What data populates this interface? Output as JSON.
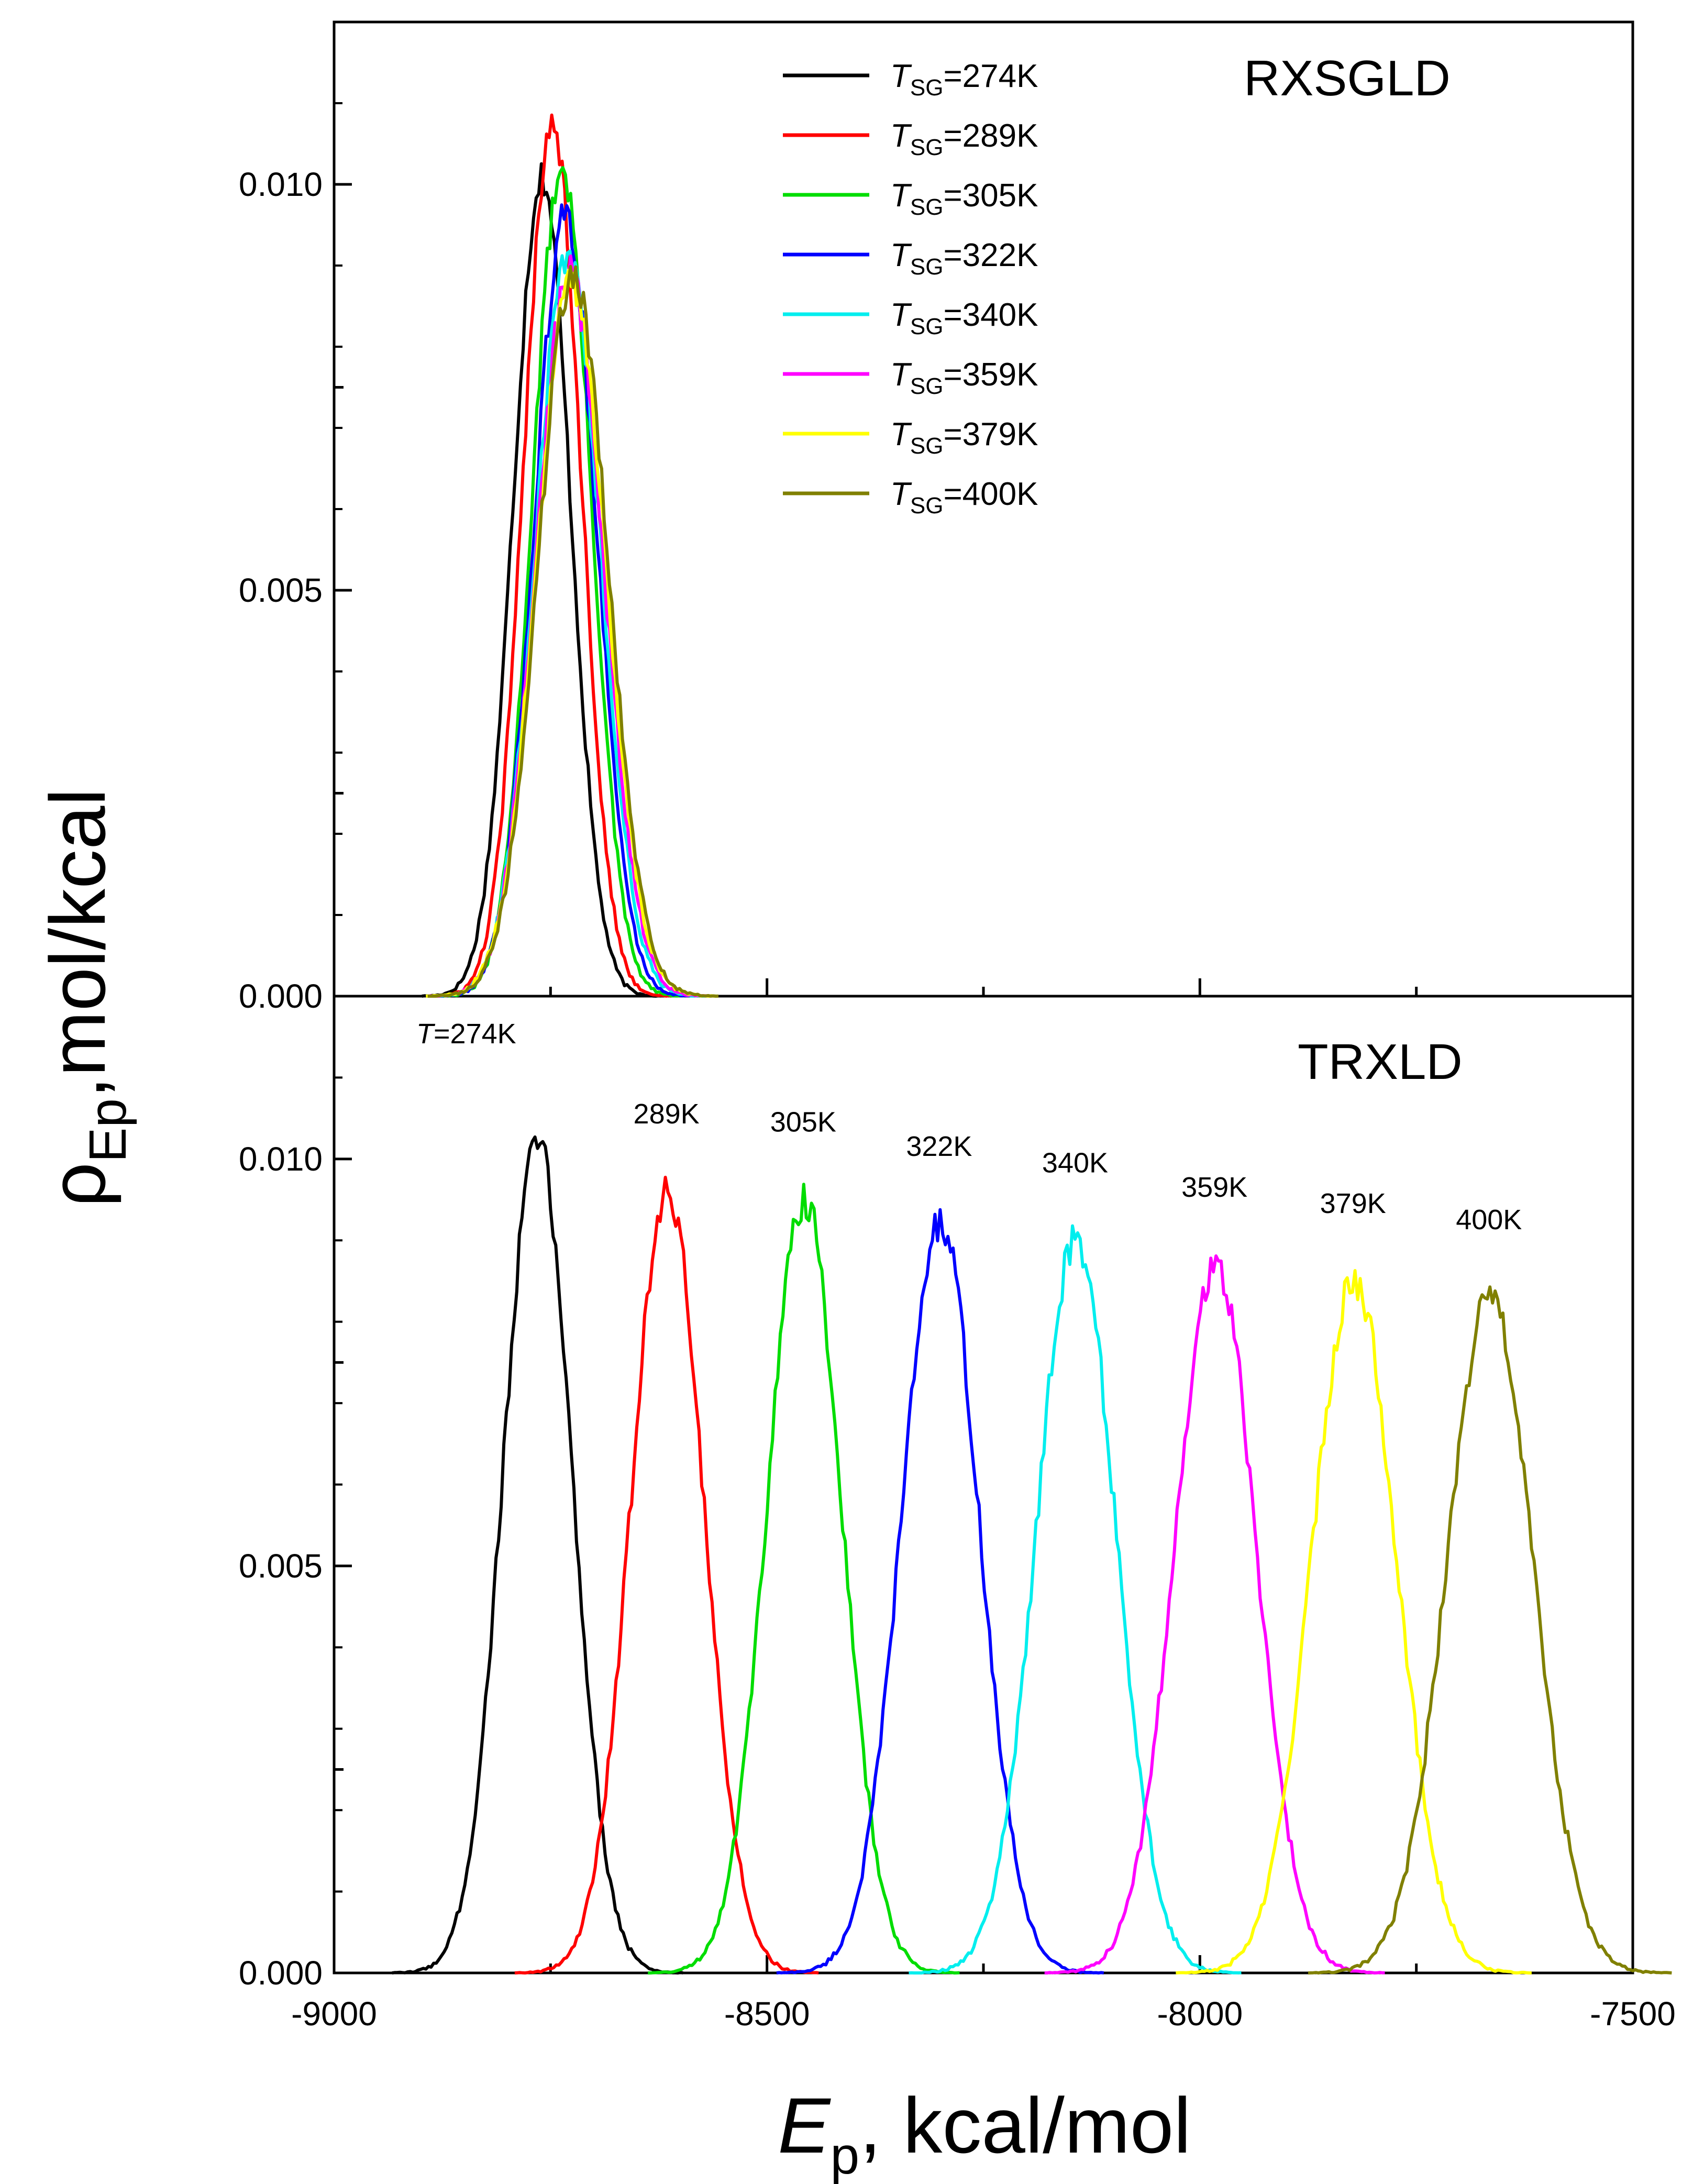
{
  "chart_data": {
    "type": "line",
    "xlabel_main": "E",
    "xlabel_sub": "p",
    "xlabel_rest": ", kcal/mol",
    "ylabel_main": "ρ",
    "ylabel_sub": "Ep",
    "ylabel_rest": ",mol/kcal",
    "xlim": [
      -9000,
      -7500
    ],
    "ylim": [
      0,
      0.012
    ],
    "x_ticks": [
      -9000,
      -8500,
      -8000,
      -7500
    ],
    "x_tick_labels": [
      "-9000",
      "-8500",
      "-8000",
      "-7500"
    ],
    "y_ticks": [
      0,
      0.005,
      0.01
    ],
    "y_tick_labels": [
      "0.000",
      "0.005",
      "0.010"
    ],
    "legend_prefix": "T",
    "legend_sub": "SG",
    "panels": [
      {
        "id": "top",
        "title": "RXSGLD",
        "series": [
          {
            "name": "=274K",
            "color": "#000000",
            "mean": -8760,
            "sigma": 33,
            "peak": 0.0101
          },
          {
            "name": "=289K",
            "color": "#ff0000",
            "mean": -8748,
            "sigma": 33,
            "peak": 0.0108
          },
          {
            "name": "=305K",
            "color": "#00dd00",
            "mean": -8737,
            "sigma": 34,
            "peak": 0.0102
          },
          {
            "name": "=322K",
            "color": "#0000ff",
            "mean": -8733,
            "sigma": 36,
            "peak": 0.0096
          },
          {
            "name": "=340K",
            "color": "#00eeee",
            "mean": -8730,
            "sigma": 38,
            "peak": 0.0091
          },
          {
            "name": "=359K",
            "color": "#ff00ff",
            "mean": -8728,
            "sigma": 39,
            "peak": 0.0089
          },
          {
            "name": "=379K",
            "color": "#ffff00",
            "mean": -8726,
            "sigma": 40,
            "peak": 0.0088
          },
          {
            "name": "=400K",
            "color": "#808000",
            "mean": -8724,
            "sigma": 40,
            "peak": 0.0089
          }
        ]
      },
      {
        "id": "bottom",
        "title": "TRXLD",
        "peak_labels_prefix": "T",
        "series": [
          {
            "name": "=274K",
            "label": "=274K",
            "color": "#000000",
            "mean": -8765,
            "sigma": 40,
            "peak": 0.0102
          },
          {
            "name": "289K",
            "label": "289K",
            "color": "#ff0000",
            "mean": -8615,
            "sigma": 42,
            "peak": 0.0096
          },
          {
            "name": "305K",
            "label": "305K",
            "color": "#00dd00",
            "mean": -8457,
            "sigma": 43,
            "peak": 0.0095
          },
          {
            "name": "322K",
            "label": "322K",
            "color": "#0000ff",
            "mean": -8300,
            "sigma": 45,
            "peak": 0.0092
          },
          {
            "name": "340K",
            "label": "340K",
            "color": "#00eeee",
            "mean": -8143,
            "sigma": 46,
            "peak": 0.009
          },
          {
            "name": "359K",
            "label": "359K",
            "color": "#ff00ff",
            "mean": -7982,
            "sigma": 47,
            "peak": 0.0087
          },
          {
            "name": "379K",
            "label": "379K",
            "color": "#ffff00",
            "mean": -7822,
            "sigma": 49,
            "peak": 0.0085
          },
          {
            "name": "400K",
            "label": "400K",
            "color": "#808000",
            "mean": -7665,
            "sigma": 50,
            "peak": 0.0083
          }
        ]
      }
    ]
  }
}
